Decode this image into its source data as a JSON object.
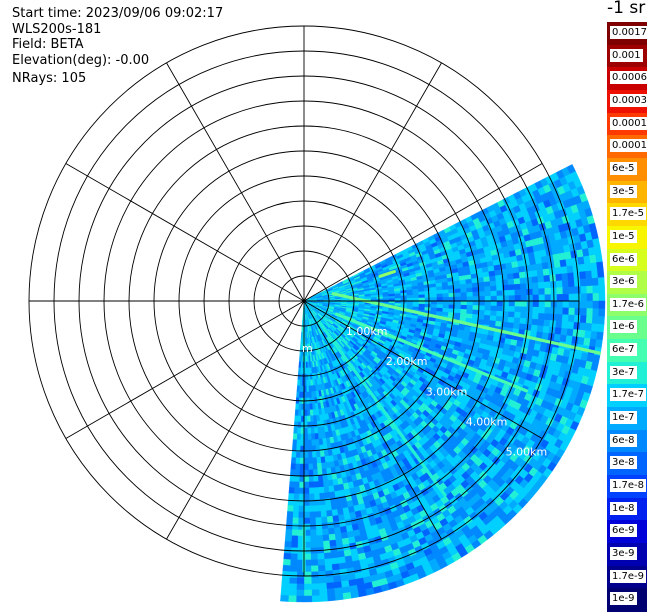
{
  "header": {
    "start_time": "Start time: 2023/09/06 09:02:17",
    "instrument": "WLS200s-181",
    "field": "Field: BETA",
    "elevation": "Elevation(deg): -0.00",
    "nrays": "NRays: 105"
  },
  "colorbar": {
    "unit_label": "-1 sr",
    "labels": [
      "0.0017",
      "0.001",
      "0.0006",
      "0.0003",
      "0.00017",
      "0.0001",
      "6e-5",
      "3e-5",
      "1.7e-5",
      "1e-5",
      "6e-6",
      "3e-6",
      "1.7e-6",
      "1e-6",
      "6e-7",
      "3e-7",
      "1.7e-7",
      "1e-7",
      "6e-8",
      "3e-8",
      "1.7e-8",
      "1e-8",
      "6e-9",
      "3e-9",
      "1.7e-9",
      "1e-9"
    ],
    "colors": [
      "#7f0000",
      "#9c0000",
      "#c80000",
      "#ee1000",
      "#ff3a00",
      "#ff6a00",
      "#ff8f00",
      "#ffb400",
      "#ffd800",
      "#f8f500",
      "#d6ff20",
      "#b0ff46",
      "#8cff6b",
      "#6aff8c",
      "#44ffb2",
      "#22f0d4",
      "#00d0ff",
      "#00aaff",
      "#0088ff",
      "#0064ff",
      "#0042ff",
      "#0020f0",
      "#0000d8",
      "#0000b0",
      "#00008c",
      "#000070"
    ]
  },
  "chart_data": {
    "type": "heatmap",
    "title": "",
    "projection": "polar PPI scan",
    "field": "BETA",
    "units": "sr-1",
    "range_ring_labels": [
      "1.00km",
      "2.00km",
      "3.00km",
      "4.00km",
      "5.00km"
    ],
    "origin_ring_label_fragment": "m",
    "range_rings_km": [
      0.5,
      1.0,
      1.5,
      2.0,
      2.5,
      3.0,
      3.5,
      4.0,
      4.5,
      5.0,
      5.5
    ],
    "azimuth_grid_deg": [
      0,
      30,
      60,
      90,
      120,
      150,
      180,
      210,
      240,
      270,
      300,
      330
    ],
    "scan_sector_deg": [
      63,
      184
    ],
    "max_range_km": 6.0,
    "color_scale": "log",
    "value_range": [
      1e-09,
      0.0017
    ],
    "typical_value": 1e-07,
    "features": [
      {
        "name": "strong backscatter line",
        "azimuth_start_deg": 76,
        "azimuth_end_deg": 100,
        "range_km": [
          0.6,
          6.0
        ],
        "value": 1e-06
      },
      {
        "name": "line along 112 deg",
        "azimuth_deg": 112,
        "range_km": [
          0.7,
          4.8
        ],
        "value": 6e-07
      },
      {
        "name": "line along 144 deg",
        "azimuth_deg": 144,
        "range_km": [
          0.5,
          4.8
        ],
        "value": 3e-07
      },
      {
        "name": "near-field echo",
        "azimuth_deg": 72,
        "range_km": [
          1.6,
          1.9
        ],
        "value": 1.7e-06
      },
      {
        "name": "echo near sector edge",
        "azimuth_deg": 180,
        "range_km": [
          4.5,
          5.4
        ],
        "value": 3e-07
      }
    ]
  }
}
